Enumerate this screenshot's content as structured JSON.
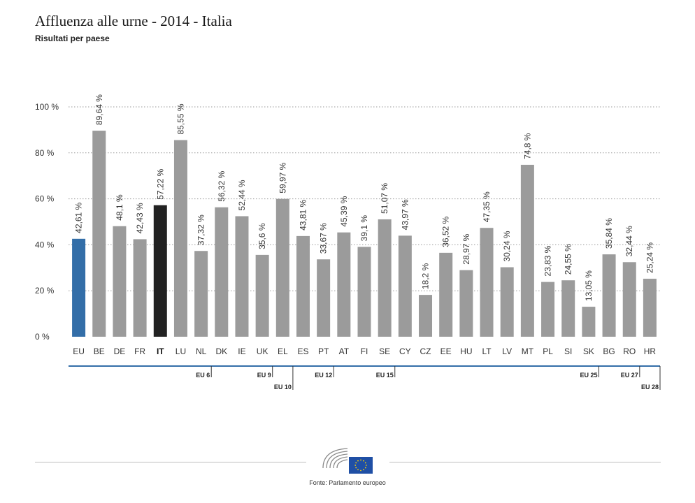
{
  "header": {
    "title": "Affluenza alle urne - 2014 - Italia",
    "subtitle": "Risultati per paese"
  },
  "chart_data": {
    "type": "bar",
    "categories": [
      "EU",
      "BE",
      "DE",
      "FR",
      "IT",
      "LU",
      "NL",
      "DK",
      "IE",
      "UK",
      "EL",
      "ES",
      "PT",
      "AT",
      "FI",
      "SE",
      "CY",
      "CZ",
      "EE",
      "HU",
      "LT",
      "LV",
      "MT",
      "PL",
      "SI",
      "SK",
      "BG",
      "RO",
      "HR"
    ],
    "values": [
      42.61,
      89.64,
      48.1,
      42.43,
      57.22,
      85.55,
      37.32,
      56.32,
      52.44,
      35.6,
      59.97,
      43.81,
      33.67,
      45.39,
      39.1,
      51.07,
      43.97,
      18.2,
      36.52,
      28.97,
      47.35,
      30.24,
      74.8,
      23.83,
      24.55,
      13.05,
      35.84,
      32.44,
      25.24
    ],
    "value_labels": [
      "42,61 %",
      "89,64 %",
      "48,1 %",
      "42,43 %",
      "57,22 %",
      "85,55 %",
      "37,32 %",
      "56,32 %",
      "52,44 %",
      "35,6 %",
      "59,97 %",
      "43,81 %",
      "33,67 %",
      "45,39 %",
      "39,1 %",
      "51,07 %",
      "43,97 %",
      "18,2 %",
      "36,52 %",
      "28,97 %",
      "47,35 %",
      "30,24 %",
      "74,8 %",
      "23,83 %",
      "24,55 %",
      "13,05 %",
      "35,84 %",
      "32,44 %",
      "25,24 %"
    ],
    "highlight": {
      "EU": "#336ea8",
      "IT": "#222222"
    },
    "default_color": "#9b9b9b",
    "ylim": [
      0,
      100
    ],
    "yticks": [
      0,
      20,
      40,
      60,
      80,
      100
    ],
    "ytick_labels": [
      "0 %",
      "20 %",
      "40 %",
      "60 %",
      "80 %",
      "100 %"
    ],
    "grid": true,
    "axis_color": "#336ea8",
    "enlargement_groups": [
      {
        "label": "EU 6",
        "after": "NL",
        "row": 1
      },
      {
        "label": "EU 9",
        "after": "UK",
        "row": 1
      },
      {
        "label": "EU 10",
        "after": "EL",
        "row": 2
      },
      {
        "label": "EU 12",
        "after": "PT",
        "row": 1
      },
      {
        "label": "EU 15",
        "after": "SE",
        "row": 1
      },
      {
        "label": "EU 25",
        "after": "SK",
        "row": 1
      },
      {
        "label": "EU 27",
        "after": "RO",
        "row": 1
      },
      {
        "label": "EU 28",
        "after": "HR",
        "row": 2
      }
    ]
  },
  "footer": {
    "source": "Fonte: Parlamento europeo"
  }
}
